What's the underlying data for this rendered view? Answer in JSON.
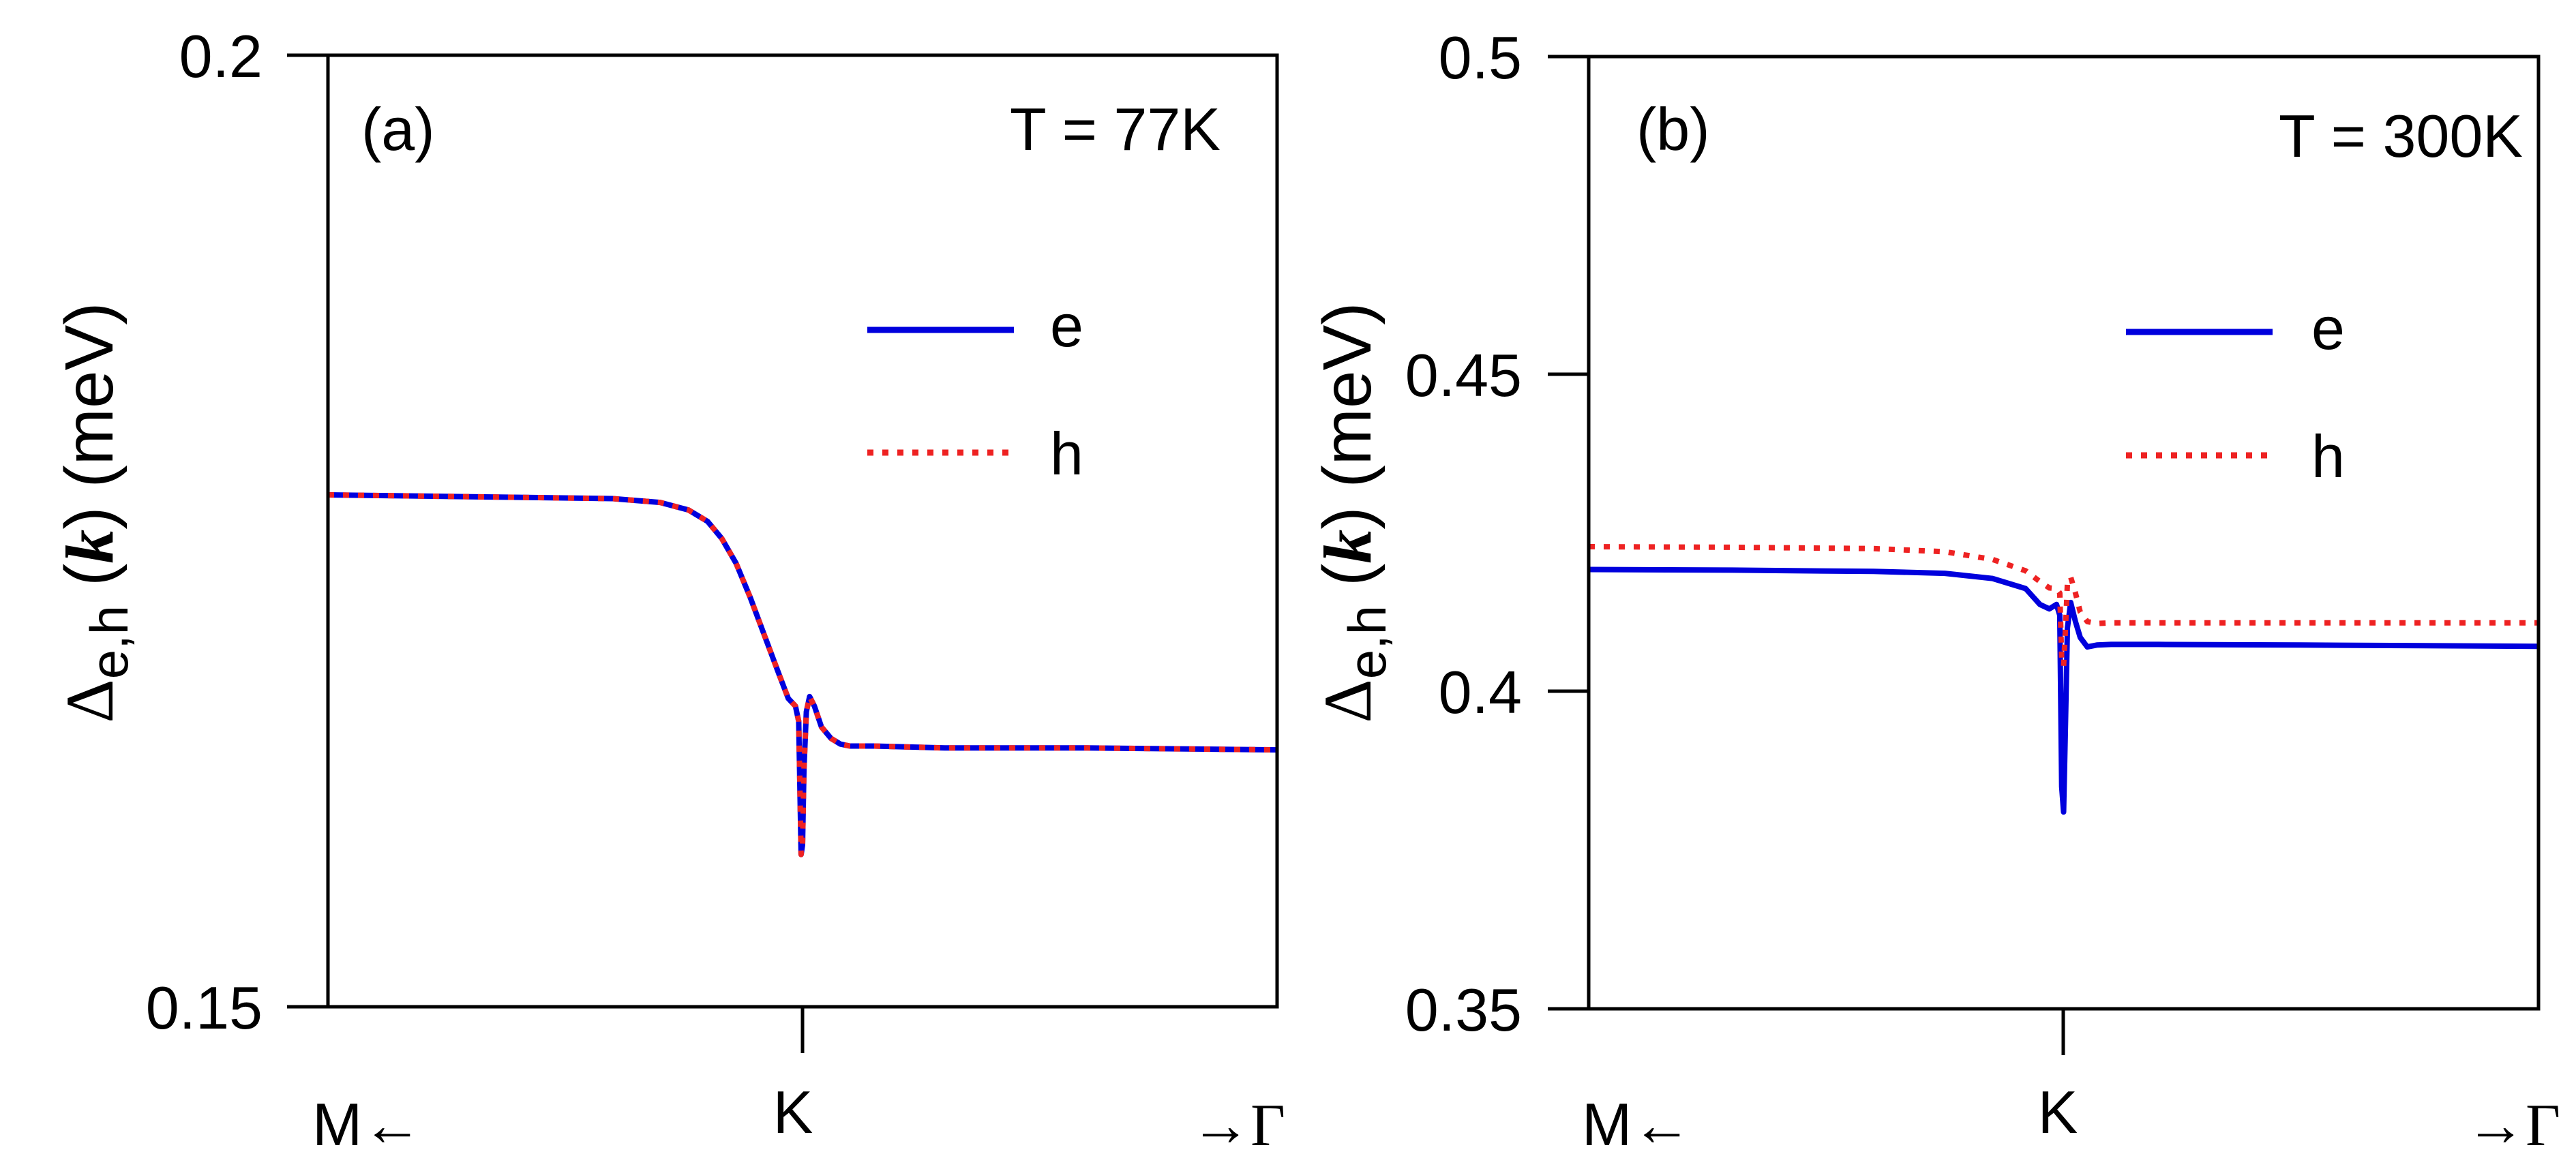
{
  "chart_data": [
    {
      "type": "line",
      "panel_label": "(a)",
      "annotation": "T = 77K",
      "ylabel": {
        "delta": "Δ",
        "subscript": "e,h",
        "paren_open": "(",
        "k": "k",
        "paren_close": ")",
        "unit": "(meV)"
      },
      "ylim": [
        0.15,
        0.2
      ],
      "yticks": [
        "0.2",
        "0.15"
      ],
      "ytick_values": [
        0.2,
        0.15
      ],
      "xlim": [
        0,
        2
      ],
      "xticks": [
        {
          "value": 1,
          "label": "K"
        }
      ],
      "x_edge_labels": {
        "left": "M←",
        "right": "→Γ"
      },
      "legend": {
        "placement": "upper-right",
        "entries": [
          "e",
          "h"
        ]
      },
      "series": [
        {
          "name": "e",
          "color": "#0000dd",
          "style": "solid",
          "x": [
            0,
            0.3,
            0.6,
            0.7,
            0.76,
            0.8,
            0.83,
            0.86,
            0.89,
            0.92,
            0.95,
            0.97,
            0.985,
            0.992,
            0.997,
            1.0,
            1.003,
            1.008,
            1.015,
            1.025,
            1.04,
            1.06,
            1.08,
            1.1,
            1.15,
            1.3,
            1.6,
            2.0
          ],
          "values": [
            0.1769,
            0.1768,
            0.1767,
            0.1765,
            0.1761,
            0.1755,
            0.1746,
            0.1733,
            0.1715,
            0.1695,
            0.1675,
            0.1662,
            0.1658,
            0.165,
            0.158,
            0.1585,
            0.1625,
            0.1655,
            0.1663,
            0.1658,
            0.1647,
            0.1641,
            0.1638,
            0.1637,
            0.1637,
            0.1636,
            0.1636,
            0.1635
          ]
        },
        {
          "name": "h",
          "color": "#ee2222",
          "style": "dotted",
          "x": [
            0,
            0.3,
            0.6,
            0.7,
            0.76,
            0.8,
            0.83,
            0.86,
            0.89,
            0.92,
            0.95,
            0.97,
            0.985,
            0.992,
            0.997,
            1.0,
            1.003,
            1.008,
            1.015,
            1.025,
            1.04,
            1.06,
            1.08,
            1.1,
            1.15,
            1.3,
            1.6,
            2.0
          ],
          "values": [
            0.1769,
            0.1768,
            0.1767,
            0.1765,
            0.1761,
            0.1755,
            0.1746,
            0.1733,
            0.1715,
            0.1695,
            0.1675,
            0.1662,
            0.1658,
            0.165,
            0.158,
            0.1585,
            0.1625,
            0.1655,
            0.1663,
            0.1658,
            0.1647,
            0.1641,
            0.1638,
            0.1637,
            0.1637,
            0.1636,
            0.1636,
            0.1635
          ]
        }
      ]
    },
    {
      "type": "line",
      "panel_label": "(b)",
      "annotation": "T = 300K",
      "ylabel": {
        "delta": "Δ",
        "subscript": "e,h",
        "paren_open": "(",
        "k": "k",
        "paren_close": ")",
        "unit": "(meV)"
      },
      "ylim": [
        0.35,
        0.5
      ],
      "yticks": [
        "0.5",
        "0.45",
        "0.4",
        "0.35"
      ],
      "ytick_values": [
        0.5,
        0.45,
        0.4,
        0.35
      ],
      "xlim": [
        0,
        2
      ],
      "xticks": [
        {
          "value": 1,
          "label": "K"
        }
      ],
      "x_edge_labels": {
        "left": "M←",
        "right": "→Γ"
      },
      "legend": {
        "placement": "upper-right",
        "entries": [
          "e",
          "h"
        ]
      },
      "series": [
        {
          "name": "e",
          "color": "#0000dd",
          "style": "solid",
          "x": [
            0,
            0.3,
            0.6,
            0.75,
            0.85,
            0.92,
            0.95,
            0.97,
            0.985,
            0.992,
            0.996,
            1.0,
            1.004,
            1.008,
            1.015,
            1.025,
            1.035,
            1.05,
            1.07,
            1.1,
            1.2,
            1.5,
            2.0
          ],
          "values": [
            0.4192,
            0.4191,
            0.4189,
            0.4186,
            0.4178,
            0.4162,
            0.4137,
            0.413,
            0.4137,
            0.412,
            0.385,
            0.381,
            0.395,
            0.41,
            0.414,
            0.411,
            0.4085,
            0.407,
            0.4073,
            0.4074,
            0.4074,
            0.4073,
            0.4071
          ]
        },
        {
          "name": "h",
          "color": "#ee2222",
          "style": "dotted",
          "x": [
            0,
            0.3,
            0.6,
            0.75,
            0.85,
            0.92,
            0.95,
            0.97,
            0.985,
            0.992,
            0.996,
            1.0,
            1.004,
            1.008,
            1.015,
            1.025,
            1.035,
            1.05,
            1.07,
            1.1,
            1.2,
            1.5,
            2.0
          ],
          "values": [
            0.4228,
            0.4227,
            0.4225,
            0.422,
            0.4208,
            0.419,
            0.4173,
            0.4163,
            0.4162,
            0.4155,
            0.405,
            0.404,
            0.41,
            0.417,
            0.418,
            0.4155,
            0.4125,
            0.411,
            0.4107,
            0.4108,
            0.4108,
            0.4108,
            0.4108
          ]
        }
      ]
    }
  ]
}
